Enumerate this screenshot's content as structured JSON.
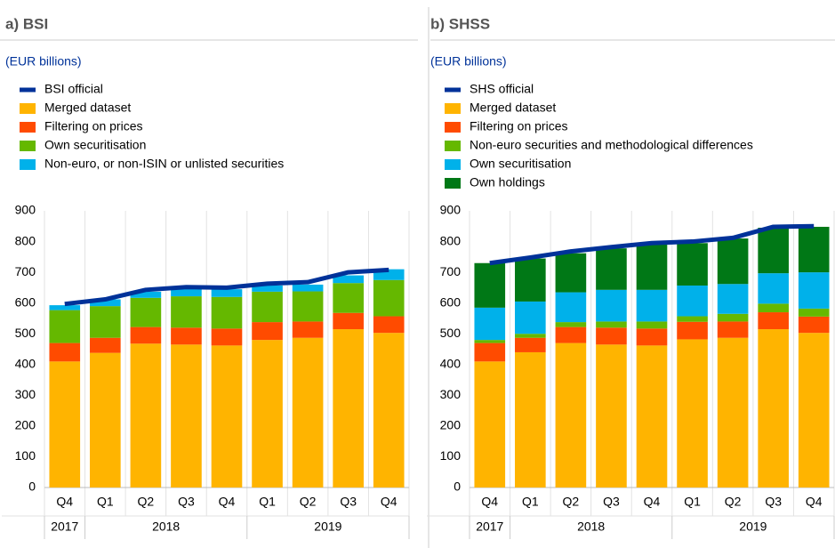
{
  "chart_data": [
    {
      "type": "bar",
      "title": "a) BSI",
      "subtitle": "(EUR billions)",
      "categories": [
        "Q4",
        "Q1",
        "Q2",
        "Q3",
        "Q4",
        "Q1",
        "Q2",
        "Q3",
        "Q4"
      ],
      "years": [
        "2017",
        "2018",
        null,
        null,
        null,
        "2019",
        null,
        null,
        null
      ],
      "ylim": [
        0,
        900
      ],
      "yticks": [
        0,
        100,
        200,
        300,
        400,
        500,
        600,
        700,
        800,
        900
      ],
      "series": [
        {
          "name": "BSI official",
          "type": "line",
          "color": "#003299",
          "values": [
            597,
            612,
            643,
            652,
            650,
            663,
            668,
            700,
            708
          ]
        },
        {
          "name": "Merged dataset",
          "type": "bar",
          "color": "#ffb400",
          "values": [
            410,
            438,
            468,
            465,
            462,
            480,
            487,
            515,
            503
          ]
        },
        {
          "name": "Filtering on prices",
          "type": "bar",
          "color": "#ff4b00",
          "values": [
            60,
            49,
            54,
            55,
            55,
            58,
            53,
            53,
            54
          ]
        },
        {
          "name": "Own securitisation",
          "type": "bar",
          "color": "#65b800",
          "values": [
            107,
            103,
            95,
            102,
            103,
            99,
            98,
            97,
            118
          ]
        },
        {
          "name": "Non-euro, or non-ISIN or unlisted securities",
          "type": "bar",
          "color": "#00b1ea",
          "values": [
            16,
            22,
            20,
            23,
            25,
            20,
            22,
            25,
            35
          ]
        }
      ]
    },
    {
      "type": "bar",
      "title": "b) SHSS",
      "subtitle": "(EUR billions)",
      "categories": [
        "Q4",
        "Q1",
        "Q2",
        "Q3",
        "Q4",
        "Q1",
        "Q2",
        "Q3",
        "Q4"
      ],
      "years": [
        "2017",
        "2018",
        null,
        null,
        null,
        "2019",
        null,
        null,
        null
      ],
      "ylim": [
        0,
        900
      ],
      "yticks": [
        0,
        100,
        200,
        300,
        400,
        500,
        600,
        700,
        800,
        900
      ],
      "series": [
        {
          "name": "SHS official",
          "type": "line",
          "color": "#003299",
          "values": [
            730,
            748,
            768,
            782,
            795,
            800,
            812,
            848,
            850
          ]
        },
        {
          "name": "Merged dataset",
          "type": "bar",
          "color": "#ffb400",
          "values": [
            410,
            440,
            470,
            465,
            462,
            482,
            487,
            515,
            503
          ]
        },
        {
          "name": "Filtering on prices",
          "type": "bar",
          "color": "#ff4b00",
          "values": [
            60,
            47,
            52,
            55,
            55,
            57,
            53,
            55,
            53
          ]
        },
        {
          "name": "Non-euro securities and methodological differences",
          "type": "bar",
          "color": "#65b800",
          "values": [
            10,
            13,
            16,
            20,
            23,
            18,
            25,
            28,
            26
          ]
        },
        {
          "name": "Own securitisation",
          "type": "bar",
          "color": "#00b1ea",
          "values": [
            105,
            105,
            97,
            103,
            103,
            100,
            97,
            99,
            118
          ]
        },
        {
          "name": "Own holdings",
          "type": "bar",
          "color": "#007816",
          "values": [
            145,
            140,
            127,
            135,
            147,
            138,
            148,
            148,
            148
          ]
        }
      ]
    }
  ]
}
